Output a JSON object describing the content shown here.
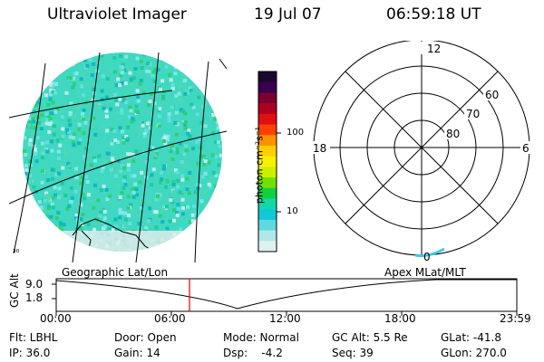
{
  "header": {
    "title": "Ultraviolet Imager",
    "date": "19 Jul 07",
    "time": "06:59:18 UT"
  },
  "colorbar": {
    "unit_label": "photon cm⁻²s⁻¹",
    "ticks": [
      "100",
      "10"
    ],
    "colors": [
      "#1a0830",
      "#3a0050",
      "#7a0030",
      "#b00020",
      "#e01010",
      "#ff4000",
      "#ff9000",
      "#ffd000",
      "#f8f000",
      "#c8f000",
      "#70e000",
      "#10d040",
      "#10d8a8",
      "#10c8d8",
      "#60d8e0",
      "#b0e8e8",
      "#e0f0f0"
    ]
  },
  "map": {
    "corner_label": "³⁰"
  },
  "polar": {
    "mlt_labels": {
      "top": "12",
      "left": "18",
      "right": "6",
      "bottom": "0"
    },
    "lat_labels": [
      "60",
      "70",
      "80"
    ]
  },
  "altitude_plot": {
    "left_caption": "Geographic Lat/Lon",
    "right_caption": "Apex MLat/MLT",
    "ylabel": "GC Alt",
    "ytick_top": "9.0",
    "ytick_bottom": "1.8",
    "xticks": [
      "00:00",
      "06:00",
      "12:00",
      "18:00",
      "23:59"
    ],
    "current_marker_color": "#e00000"
  },
  "info": {
    "flt": "Flt: LBHL",
    "ip": "IP: 36.0",
    "door": "Door: Open",
    "gain": "Gain: 14",
    "mode": "Mode: Normal",
    "dsp": "Dsp:    -4.2",
    "gc_alt": "GC Alt: 5.5 Re",
    "seq": "Seq: 39",
    "glat": "GLat: -41.8",
    "glon": "GLon: 270.0"
  }
}
